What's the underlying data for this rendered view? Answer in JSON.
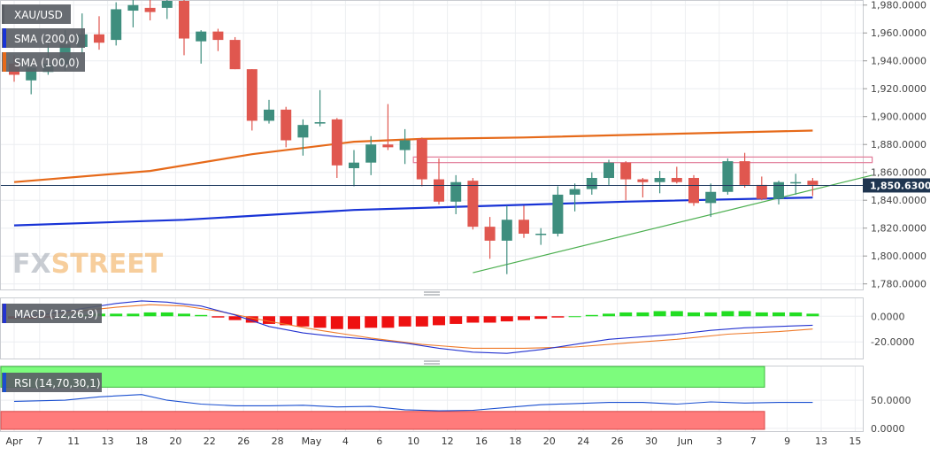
{
  "symbol": "XAU/USD",
  "indicators": {
    "sma200": "SMA (200,0)",
    "sma100": "SMA (100,0)",
    "macd": "MACD (12,26,9)",
    "rsi": "RSI (14,70,30,1)"
  },
  "watermark": {
    "fx": "FX",
    "street": "STREET"
  },
  "colors": {
    "bull": "#3e8e7e",
    "bear": "#e0574f",
    "sma200": "#1833d6",
    "sma100": "#e66a1a",
    "macd_line": "#2433d0",
    "signal_line": "#ef7a2a",
    "hist_pos": "#22dd22",
    "hist_neg": "#ee1111",
    "trend_line": "#4caf50",
    "zone": "#e27a98",
    "rsi_line": "#1a4fd0",
    "rsi_over": "#7dfc7d",
    "rsi_under": "#ff7b7b"
  },
  "chart_data": {
    "type": "candlestick",
    "price_axis": {
      "ticks": [
        "1,980.0000",
        "1,960.0000",
        "1,940.0000",
        "1,920.0000",
        "1,900.0000",
        "1,880.0000",
        "1,860.0000",
        "1,840.0000",
        "1,820.0000",
        "1,800.0000",
        "1,780.0000"
      ],
      "tick_values": [
        1980,
        1960,
        1940,
        1920,
        1900,
        1880,
        1860,
        1840,
        1820,
        1800,
        1780
      ],
      "ylim": [
        1776,
        1983
      ]
    },
    "last_price": {
      "label": "1,850.6300",
      "value": 1850.63
    },
    "x_axis": {
      "labels": [
        "Apr",
        "7",
        "11",
        "13",
        "18",
        "20",
        "22",
        "26",
        "28",
        "May",
        "4",
        "6",
        "10",
        "12",
        "16",
        "18",
        "20",
        "24",
        "26",
        "30",
        "Jun",
        "3",
        "7",
        "9",
        "13",
        "15"
      ],
      "positions": [
        0,
        1.5,
        3.5,
        5.5,
        7.5,
        9.5,
        11.5,
        13.5,
        15.5,
        17.5,
        19.5,
        21.5,
        23.5,
        25.5,
        27.5,
        29.5,
        31.5,
        33.5,
        35.5,
        37.5,
        39.5,
        41.5,
        43.5,
        45.5,
        47.5,
        49.5
      ]
    },
    "candles": [
      {
        "o": 1938,
        "h": 1944,
        "l": 1925,
        "c": 1930
      },
      {
        "o": 1926,
        "h": 1940,
        "l": 1916,
        "c": 1935
      },
      {
        "o": 1932,
        "h": 1954,
        "l": 1930,
        "c": 1938
      },
      {
        "o": 1938,
        "h": 1962,
        "l": 1933,
        "c": 1952
      },
      {
        "o": 1950,
        "h": 1974,
        "l": 1945,
        "c": 1959
      },
      {
        "o": 1959,
        "h": 1972,
        "l": 1948,
        "c": 1953
      },
      {
        "o": 1955,
        "h": 1982,
        "l": 1951,
        "c": 1977
      },
      {
        "o": 1976,
        "h": 1985,
        "l": 1964,
        "c": 1980
      },
      {
        "o": 1978,
        "h": 1986,
        "l": 1969,
        "c": 1975
      },
      {
        "o": 1978,
        "h": 1990,
        "l": 1970,
        "c": 1983
      },
      {
        "o": 1983,
        "h": 1984,
        "l": 1944,
        "c": 1956
      },
      {
        "o": 1954,
        "h": 1962,
        "l": 1938,
        "c": 1961
      },
      {
        "o": 1961,
        "h": 1963,
        "l": 1947,
        "c": 1955
      },
      {
        "o": 1955,
        "h": 1957,
        "l": 1934,
        "c": 1934
      },
      {
        "o": 1934,
        "h": 1934,
        "l": 1890,
        "c": 1897
      },
      {
        "o": 1897,
        "h": 1912,
        "l": 1895,
        "c": 1905
      },
      {
        "o": 1905,
        "h": 1907,
        "l": 1878,
        "c": 1883
      },
      {
        "o": 1885,
        "h": 1898,
        "l": 1872,
        "c": 1894
      },
      {
        "o": 1895,
        "h": 1919,
        "l": 1893,
        "c": 1896
      },
      {
        "o": 1898,
        "h": 1899,
        "l": 1856,
        "c": 1865
      },
      {
        "o": 1863,
        "h": 1876,
        "l": 1850,
        "c": 1867
      },
      {
        "o": 1867,
        "h": 1886,
        "l": 1858,
        "c": 1880
      },
      {
        "o": 1880,
        "h": 1909,
        "l": 1876,
        "c": 1878
      },
      {
        "o": 1876,
        "h": 1891,
        "l": 1866,
        "c": 1883
      },
      {
        "o": 1884,
        "h": 1885,
        "l": 1850,
        "c": 1855
      },
      {
        "o": 1855,
        "h": 1870,
        "l": 1837,
        "c": 1839
      },
      {
        "o": 1839,
        "h": 1858,
        "l": 1830,
        "c": 1853
      },
      {
        "o": 1854,
        "h": 1856,
        "l": 1819,
        "c": 1821
      },
      {
        "o": 1821,
        "h": 1828,
        "l": 1798,
        "c": 1811
      },
      {
        "o": 1811,
        "h": 1836,
        "l": 1787,
        "c": 1826
      },
      {
        "o": 1826,
        "h": 1836,
        "l": 1813,
        "c": 1816
      },
      {
        "o": 1816,
        "h": 1820,
        "l": 1808,
        "c": 1816
      },
      {
        "o": 1816,
        "h": 1850,
        "l": 1814,
        "c": 1844
      },
      {
        "o": 1844,
        "h": 1852,
        "l": 1832,
        "c": 1848
      },
      {
        "o": 1848,
        "h": 1860,
        "l": 1844,
        "c": 1856
      },
      {
        "o": 1856,
        "h": 1869,
        "l": 1851,
        "c": 1867
      },
      {
        "o": 1867,
        "h": 1868,
        "l": 1840,
        "c": 1855
      },
      {
        "o": 1855,
        "h": 1856,
        "l": 1842,
        "c": 1853
      },
      {
        "o": 1853,
        "h": 1861,
        "l": 1845,
        "c": 1856
      },
      {
        "o": 1856,
        "h": 1864,
        "l": 1852,
        "c": 1853
      },
      {
        "o": 1856,
        "h": 1858,
        "l": 1836,
        "c": 1838
      },
      {
        "o": 1838,
        "h": 1852,
        "l": 1828,
        "c": 1846
      },
      {
        "o": 1846,
        "h": 1870,
        "l": 1844,
        "c": 1868
      },
      {
        "o": 1868,
        "h": 1874,
        "l": 1849,
        "c": 1851
      },
      {
        "o": 1851,
        "h": 1857,
        "l": 1840,
        "c": 1841
      },
      {
        "o": 1841,
        "h": 1854,
        "l": 1837,
        "c": 1853
      },
      {
        "o": 1853,
        "h": 1859,
        "l": 1844,
        "c": 1853
      },
      {
        "o": 1854,
        "h": 1856,
        "l": 1843,
        "c": 1851
      }
    ],
    "sma200": [
      [
        0,
        1822
      ],
      [
        10,
        1826
      ],
      [
        20,
        1833
      ],
      [
        28,
        1836
      ],
      [
        36,
        1839
      ],
      [
        47,
        1842
      ]
    ],
    "sma100": [
      [
        0,
        1853
      ],
      [
        8,
        1861
      ],
      [
        14,
        1873
      ],
      [
        20,
        1882
      ],
      [
        24,
        1884
      ],
      [
        30,
        1885
      ],
      [
        40,
        1888
      ],
      [
        47,
        1890
      ]
    ],
    "trendline": [
      [
        27,
        1788
      ],
      [
        50.5,
        1858
      ]
    ],
    "zone": {
      "x0": 23.5,
      "x1": 50.5,
      "y_top": 1871,
      "y_bottom": 1867
    },
    "macd": {
      "axis": {
        "ticks": [
          "0.0000",
          "-20.0000"
        ],
        "tick_values": [
          0,
          -20
        ],
        "ylim": [
          -33,
          14
        ]
      },
      "histogram": [
        -2,
        -2,
        -1,
        0,
        1,
        2,
        2,
        2,
        3,
        3,
        2,
        1,
        -1,
        -3,
        -5,
        -6,
        -7,
        -8,
        -9,
        -10,
        -10,
        -9,
        -9,
        -8,
        -8,
        -7,
        -6,
        -5,
        -5,
        -4,
        -3,
        -2,
        -1,
        0,
        1,
        2,
        3,
        3,
        4,
        4,
        3,
        3,
        4,
        4,
        3,
        3,
        3,
        2
      ],
      "macd_line": [
        [
          0,
          -1
        ],
        [
          2,
          2
        ],
        [
          4,
          6
        ],
        [
          6,
          10
        ],
        [
          7.5,
          12
        ],
        [
          9,
          11
        ],
        [
          11,
          8
        ],
        [
          13,
          1
        ],
        [
          15,
          -8
        ],
        [
          17,
          -13
        ],
        [
          19,
          -16
        ],
        [
          21,
          -18
        ],
        [
          23,
          -21
        ],
        [
          25,
          -25
        ],
        [
          27,
          -28
        ],
        [
          29,
          -29
        ],
        [
          31,
          -26
        ],
        [
          33,
          -22
        ],
        [
          35,
          -18
        ],
        [
          37,
          -16
        ],
        [
          39,
          -14
        ],
        [
          41,
          -11
        ],
        [
          43,
          -9
        ],
        [
          45,
          -8
        ],
        [
          47,
          -7
        ]
      ],
      "signal_line": [
        [
          0,
          -2
        ],
        [
          3,
          3
        ],
        [
          6,
          7
        ],
        [
          8,
          9
        ],
        [
          10,
          8
        ],
        [
          12,
          4
        ],
        [
          15,
          -4
        ],
        [
          18,
          -11
        ],
        [
          21,
          -17
        ],
        [
          24,
          -22
        ],
        [
          27,
          -25
        ],
        [
          30,
          -25
        ],
        [
          33,
          -24
        ],
        [
          36,
          -21
        ],
        [
          39,
          -18
        ],
        [
          42,
          -14
        ],
        [
          45,
          -12
        ],
        [
          47,
          -10
        ]
      ]
    },
    "rsi": {
      "axis": {
        "ticks": [
          "50.0000",
          "0.0000"
        ],
        "tick_values": [
          50,
          0
        ],
        "ylim": [
          -5,
          110
        ]
      },
      "overbought": 70,
      "oversold": 30,
      "line": [
        [
          0,
          48
        ],
        [
          3,
          50
        ],
        [
          5,
          56
        ],
        [
          7.5,
          60
        ],
        [
          9,
          50
        ],
        [
          11,
          43
        ],
        [
          13,
          40
        ],
        [
          15,
          40
        ],
        [
          17,
          41
        ],
        [
          19,
          38
        ],
        [
          21,
          39
        ],
        [
          23,
          33
        ],
        [
          25,
          31
        ],
        [
          27,
          32
        ],
        [
          29,
          37
        ],
        [
          31,
          42
        ],
        [
          33,
          44
        ],
        [
          35,
          46
        ],
        [
          37,
          46
        ],
        [
          39,
          43
        ],
        [
          41,
          47
        ],
        [
          43,
          45
        ],
        [
          45,
          46
        ],
        [
          47,
          46
        ]
      ]
    }
  }
}
